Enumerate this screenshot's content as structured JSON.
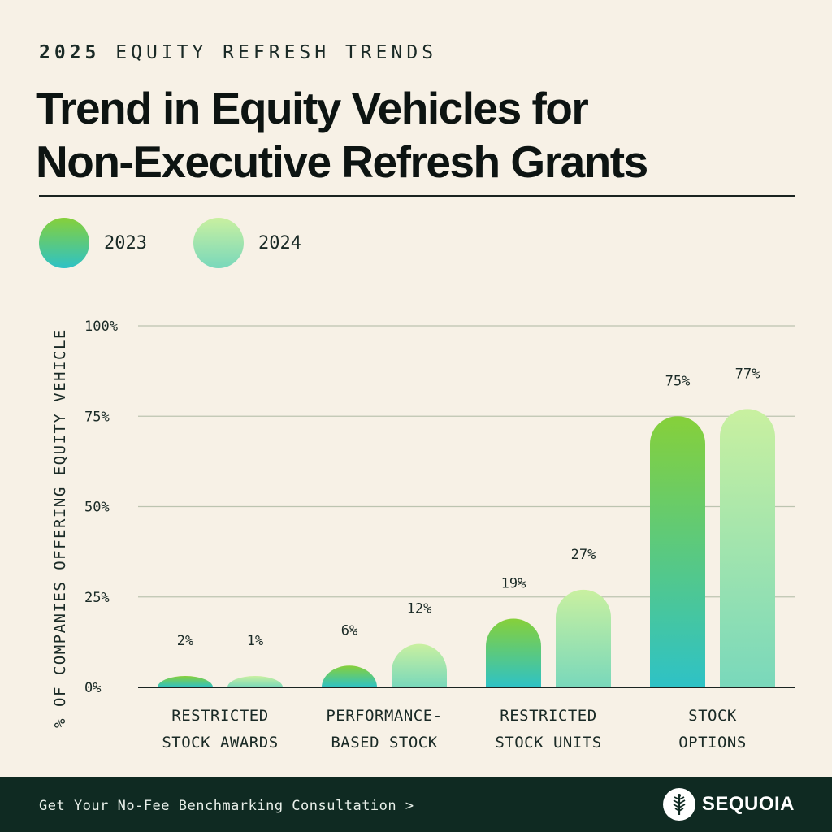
{
  "header": {
    "eyebrow_year": "2025",
    "eyebrow_text": "EQUITY REFRESH TRENDS",
    "title_line1": "Trend in Equity Vehicles for",
    "title_line2": "Non-Executive Refresh Grants"
  },
  "legend": [
    {
      "label": "2023",
      "color_top": "#86d03a",
      "color_bottom": "#2ec2c6"
    },
    {
      "label": "2024",
      "color_top": "#c9f0a0",
      "color_bottom": "#79d8bb"
    }
  ],
  "chart_data": {
    "type": "bar",
    "ylabel": "% OF COMPANIES OFFERING EQUITY VEHICLE",
    "ylim": [
      0,
      100
    ],
    "yticks": [
      0,
      25,
      50,
      75,
      100
    ],
    "ytick_labels": [
      "0%",
      "25%",
      "50%",
      "75%",
      "100%"
    ],
    "grid": true,
    "categories": [
      [
        "RESTRICTED",
        "STOCK AWARDS"
      ],
      [
        "PERFORMANCE-",
        "BASED STOCK"
      ],
      [
        "RESTRICTED",
        "STOCK UNITS"
      ],
      [
        "STOCK",
        "OPTIONS"
      ]
    ],
    "series": [
      {
        "name": "2023",
        "values": [
          2,
          6,
          19,
          75
        ],
        "labels": [
          "2%",
          "6%",
          "19%",
          "75%"
        ]
      },
      {
        "name": "2024",
        "values": [
          1,
          12,
          27,
          77
        ],
        "labels": [
          "1%",
          "12%",
          "27%",
          "77%"
        ]
      }
    ]
  },
  "footer": {
    "cta": "Get Your No-Fee Benchmarking Consultation >",
    "brand": "SEQUOIA"
  }
}
